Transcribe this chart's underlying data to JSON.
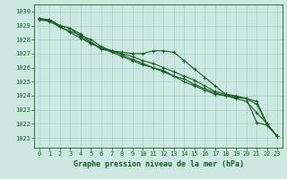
{
  "title": "Graphe pression niveau de la mer (hPa)",
  "xlim": [
    -0.5,
    23.5
  ],
  "ylim": [
    1020.3,
    1030.5
  ],
  "yticks": [
    1021,
    1022,
    1023,
    1024,
    1025,
    1026,
    1027,
    1028,
    1029,
    1030
  ],
  "xticks": [
    0,
    1,
    2,
    3,
    4,
    5,
    6,
    7,
    8,
    9,
    10,
    11,
    12,
    13,
    14,
    15,
    16,
    17,
    18,
    19,
    20,
    21,
    22,
    23
  ],
  "bg_color": "#cce8e0",
  "grid_color": "#aacccc",
  "line_color": "#1a5c28",
  "series": [
    [
      1029.5,
      1029.4,
      1029.0,
      1028.8,
      1028.2,
      1027.8,
      1027.3,
      1027.2,
      1027.1,
      1027.0,
      1027.0,
      1027.2,
      1027.2,
      1027.1,
      1026.5,
      1025.9,
      1025.3,
      1024.7,
      1024.1,
      1023.9,
      1023.8,
      1022.1,
      1021.9,
      1021.1
    ],
    [
      1029.5,
      1029.4,
      1029.0,
      1028.8,
      1028.4,
      1027.8,
      1027.4,
      1027.2,
      1027.0,
      1026.8,
      1026.5,
      1026.3,
      1026.0,
      1025.7,
      1025.4,
      1025.1,
      1024.7,
      1024.3,
      1024.1,
      1024.0,
      1023.8,
      1023.4,
      1022.0,
      1021.1
    ],
    [
      1029.5,
      1029.3,
      1028.9,
      1028.6,
      1028.3,
      1028.0,
      1027.5,
      1027.2,
      1026.9,
      1026.6,
      1026.3,
      1026.0,
      1025.8,
      1025.4,
      1025.0,
      1024.7,
      1024.4,
      1024.1,
      1024.0,
      1023.9,
      1023.8,
      1023.6,
      1022.0,
      1021.1
    ],
    [
      1029.4,
      1029.3,
      1028.9,
      1028.5,
      1028.1,
      1027.7,
      1027.4,
      1027.1,
      1026.8,
      1026.5,
      1026.2,
      1026.0,
      1025.7,
      1025.4,
      1025.2,
      1024.8,
      1024.5,
      1024.2,
      1024.0,
      1023.8,
      1023.6,
      1022.8,
      1022.0,
      1021.1
    ]
  ],
  "marker": "+"
}
